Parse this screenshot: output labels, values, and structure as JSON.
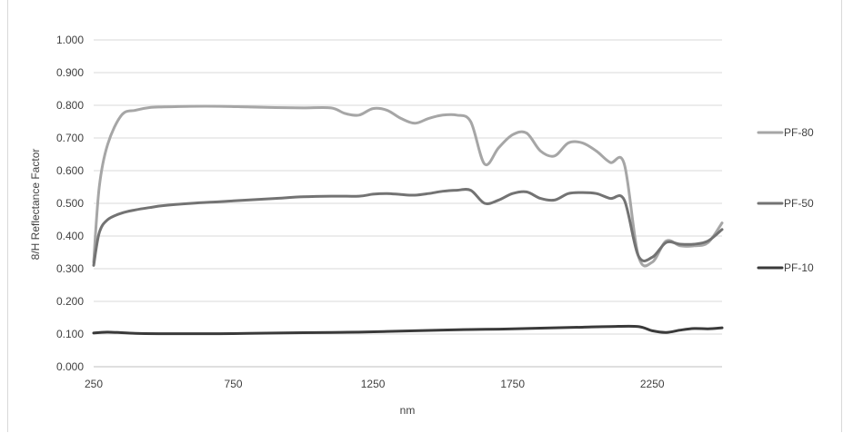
{
  "chart_data": {
    "type": "line",
    "title": "",
    "xlabel": "nm",
    "ylabel": "8/H Reflectance Factor",
    "xlim": [
      250,
      2500
    ],
    "ylim": [
      0,
      1
    ],
    "x_ticks": [
      "250",
      "750",
      "1250",
      "1750",
      "2250"
    ],
    "y_ticks": [
      "0.000",
      "0.100",
      "0.200",
      "0.300",
      "0.400",
      "0.500",
      "0.600",
      "0.700",
      "0.800",
      "0.900",
      "1.000"
    ],
    "grid": true,
    "legend_position": "right",
    "series": [
      {
        "name": "PF-80",
        "color": "#a6a6a6",
        "x": [
          250,
          270,
          300,
          350,
          400,
          450,
          500,
          600,
          700,
          800,
          900,
          1000,
          1100,
          1150,
          1200,
          1250,
          1300,
          1350,
          1400,
          1450,
          1500,
          1550,
          1600,
          1650,
          1700,
          1750,
          1800,
          1850,
          1900,
          1950,
          2000,
          2050,
          2100,
          2150,
          2200,
          2250,
          2300,
          2350,
          2400,
          2450,
          2500
        ],
        "values": [
          0.32,
          0.55,
          0.68,
          0.77,
          0.785,
          0.793,
          0.795,
          0.797,
          0.797,
          0.795,
          0.793,
          0.792,
          0.792,
          0.775,
          0.77,
          0.79,
          0.785,
          0.76,
          0.745,
          0.76,
          0.77,
          0.77,
          0.75,
          0.62,
          0.67,
          0.71,
          0.715,
          0.66,
          0.645,
          0.685,
          0.685,
          0.66,
          0.625,
          0.62,
          0.34,
          0.32,
          0.385,
          0.37,
          0.37,
          0.38,
          0.44
        ]
      },
      {
        "name": "PF-50",
        "color": "#737373",
        "x": [
          250,
          270,
          300,
          350,
          400,
          450,
          500,
          600,
          700,
          800,
          900,
          1000,
          1100,
          1200,
          1250,
          1300,
          1350,
          1400,
          1450,
          1500,
          1550,
          1600,
          1650,
          1700,
          1750,
          1800,
          1850,
          1900,
          1950,
          2000,
          2050,
          2100,
          2150,
          2200,
          2250,
          2300,
          2350,
          2400,
          2450,
          2500
        ],
        "values": [
          0.31,
          0.41,
          0.45,
          0.47,
          0.48,
          0.487,
          0.493,
          0.5,
          0.505,
          0.51,
          0.515,
          0.52,
          0.522,
          0.522,
          0.528,
          0.53,
          0.527,
          0.525,
          0.53,
          0.537,
          0.54,
          0.54,
          0.5,
          0.51,
          0.53,
          0.535,
          0.515,
          0.51,
          0.53,
          0.533,
          0.53,
          0.515,
          0.51,
          0.34,
          0.335,
          0.38,
          0.375,
          0.375,
          0.385,
          0.42
        ]
      },
      {
        "name": "PF-10",
        "color": "#3a3a3a",
        "x": [
          250,
          300,
          400,
          500,
          600,
          700,
          800,
          900,
          1000,
          1100,
          1200,
          1300,
          1400,
          1500,
          1600,
          1700,
          1800,
          1900,
          2000,
          2100,
          2200,
          2250,
          2300,
          2350,
          2400,
          2450,
          2500
        ],
        "values": [
          0.103,
          0.106,
          0.102,
          0.101,
          0.101,
          0.101,
          0.102,
          0.103,
          0.104,
          0.105,
          0.106,
          0.108,
          0.11,
          0.112,
          0.114,
          0.115,
          0.117,
          0.119,
          0.121,
          0.123,
          0.123,
          0.11,
          0.105,
          0.112,
          0.117,
          0.116,
          0.119
        ]
      }
    ]
  }
}
